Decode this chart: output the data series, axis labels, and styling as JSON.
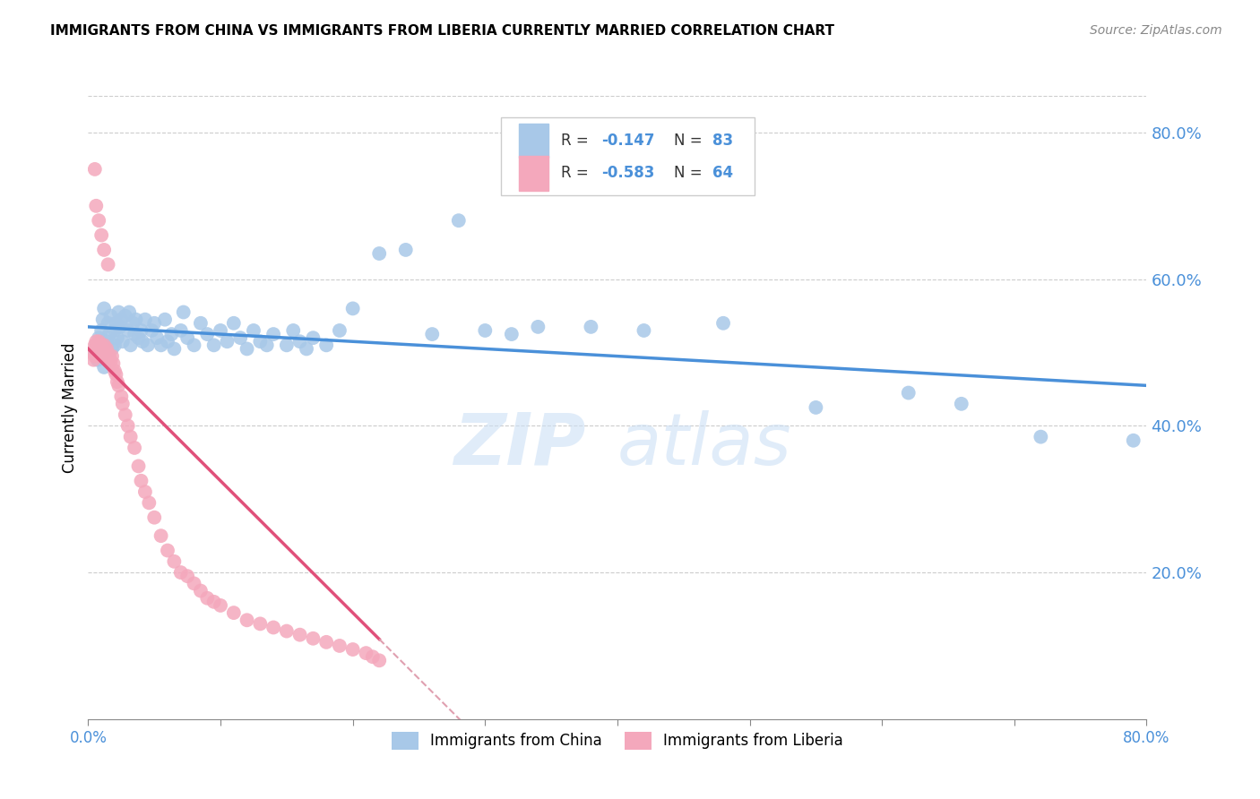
{
  "title": "IMMIGRANTS FROM CHINA VS IMMIGRANTS FROM LIBERIA CURRENTLY MARRIED CORRELATION CHART",
  "source": "Source: ZipAtlas.com",
  "ylabel": "Currently Married",
  "x_min": 0.0,
  "x_max": 0.8,
  "y_min": 0.0,
  "y_max": 0.85,
  "x_ticks": [
    0.0,
    0.1,
    0.2,
    0.3,
    0.4,
    0.5,
    0.6,
    0.7,
    0.8
  ],
  "x_tick_labels_show": [
    "0.0%",
    "",
    "",
    "",
    "",
    "",
    "",
    "",
    "80.0%"
  ],
  "y_ticks": [
    0.2,
    0.4,
    0.6,
    0.8
  ],
  "y_tick_labels": [
    "20.0%",
    "40.0%",
    "60.0%",
    "80.0%"
  ],
  "china_color": "#a8c8e8",
  "liberia_color": "#f4a8bc",
  "china_line_color": "#4a90d9",
  "liberia_line_color": "#e0507a",
  "liberia_line_dash_color": "#e0a0b0",
  "watermark_zip": "ZIP",
  "watermark_atlas": "atlas",
  "legend_r_china": "-0.147",
  "legend_n_china": "83",
  "legend_r_liberia": "-0.583",
  "legend_n_liberia": "64",
  "china_intercept": 0.535,
  "china_slope": -0.1,
  "liberia_intercept": 0.505,
  "liberia_slope": -1.8,
  "china_x": [
    0.005,
    0.006,
    0.007,
    0.008,
    0.009,
    0.01,
    0.01,
    0.011,
    0.012,
    0.012,
    0.013,
    0.014,
    0.015,
    0.016,
    0.017,
    0.018,
    0.02,
    0.02,
    0.021,
    0.022,
    0.023,
    0.024,
    0.025,
    0.026,
    0.028,
    0.03,
    0.031,
    0.032,
    0.034,
    0.035,
    0.036,
    0.038,
    0.04,
    0.041,
    0.043,
    0.045,
    0.048,
    0.05,
    0.052,
    0.055,
    0.058,
    0.06,
    0.063,
    0.065,
    0.07,
    0.072,
    0.075,
    0.08,
    0.085,
    0.09,
    0.095,
    0.1,
    0.105,
    0.11,
    0.115,
    0.12,
    0.125,
    0.13,
    0.135,
    0.14,
    0.15,
    0.155,
    0.16,
    0.165,
    0.17,
    0.18,
    0.19,
    0.2,
    0.22,
    0.24,
    0.26,
    0.28,
    0.3,
    0.32,
    0.34,
    0.38,
    0.42,
    0.48,
    0.55,
    0.62,
    0.66,
    0.72,
    0.79
  ],
  "china_y": [
    0.5,
    0.51,
    0.49,
    0.52,
    0.505,
    0.53,
    0.515,
    0.545,
    0.48,
    0.56,
    0.5,
    0.515,
    0.54,
    0.525,
    0.55,
    0.505,
    0.51,
    0.53,
    0.54,
    0.52,
    0.555,
    0.535,
    0.545,
    0.515,
    0.55,
    0.53,
    0.555,
    0.51,
    0.54,
    0.525,
    0.545,
    0.52,
    0.53,
    0.515,
    0.545,
    0.51,
    0.53,
    0.54,
    0.52,
    0.51,
    0.545,
    0.515,
    0.525,
    0.505,
    0.53,
    0.555,
    0.52,
    0.51,
    0.54,
    0.525,
    0.51,
    0.53,
    0.515,
    0.54,
    0.52,
    0.505,
    0.53,
    0.515,
    0.51,
    0.525,
    0.51,
    0.53,
    0.515,
    0.505,
    0.52,
    0.51,
    0.53,
    0.56,
    0.635,
    0.64,
    0.525,
    0.68,
    0.53,
    0.525,
    0.535,
    0.535,
    0.53,
    0.54,
    0.425,
    0.445,
    0.43,
    0.385,
    0.38
  ],
  "liberia_x": [
    0.003,
    0.004,
    0.005,
    0.005,
    0.006,
    0.006,
    0.007,
    0.007,
    0.008,
    0.008,
    0.009,
    0.009,
    0.01,
    0.01,
    0.011,
    0.011,
    0.012,
    0.012,
    0.013,
    0.014,
    0.015,
    0.015,
    0.016,
    0.017,
    0.018,
    0.019,
    0.02,
    0.021,
    0.022,
    0.023,
    0.025,
    0.026,
    0.028,
    0.03,
    0.032,
    0.035,
    0.038,
    0.04,
    0.043,
    0.046,
    0.05,
    0.055,
    0.06,
    0.065,
    0.07,
    0.075,
    0.08,
    0.085,
    0.09,
    0.095,
    0.1,
    0.11,
    0.12,
    0.13,
    0.14,
    0.15,
    0.16,
    0.17,
    0.18,
    0.19,
    0.2,
    0.21,
    0.215,
    0.22
  ],
  "liberia_y": [
    0.5,
    0.49,
    0.51,
    0.495,
    0.505,
    0.515,
    0.498,
    0.51,
    0.5,
    0.515,
    0.505,
    0.495,
    0.51,
    0.5,
    0.505,
    0.495,
    0.5,
    0.51,
    0.495,
    0.505,
    0.49,
    0.498,
    0.495,
    0.488,
    0.495,
    0.485,
    0.475,
    0.47,
    0.46,
    0.455,
    0.44,
    0.43,
    0.415,
    0.4,
    0.385,
    0.37,
    0.345,
    0.325,
    0.31,
    0.295,
    0.275,
    0.25,
    0.23,
    0.215,
    0.2,
    0.195,
    0.185,
    0.175,
    0.165,
    0.16,
    0.155,
    0.145,
    0.135,
    0.13,
    0.125,
    0.12,
    0.115,
    0.11,
    0.105,
    0.1,
    0.095,
    0.09,
    0.085,
    0.08
  ],
  "liberia_outliers_x": [
    0.005,
    0.006,
    0.008,
    0.01,
    0.012,
    0.015
  ],
  "liberia_outliers_y": [
    0.75,
    0.7,
    0.68,
    0.66,
    0.64,
    0.62
  ]
}
